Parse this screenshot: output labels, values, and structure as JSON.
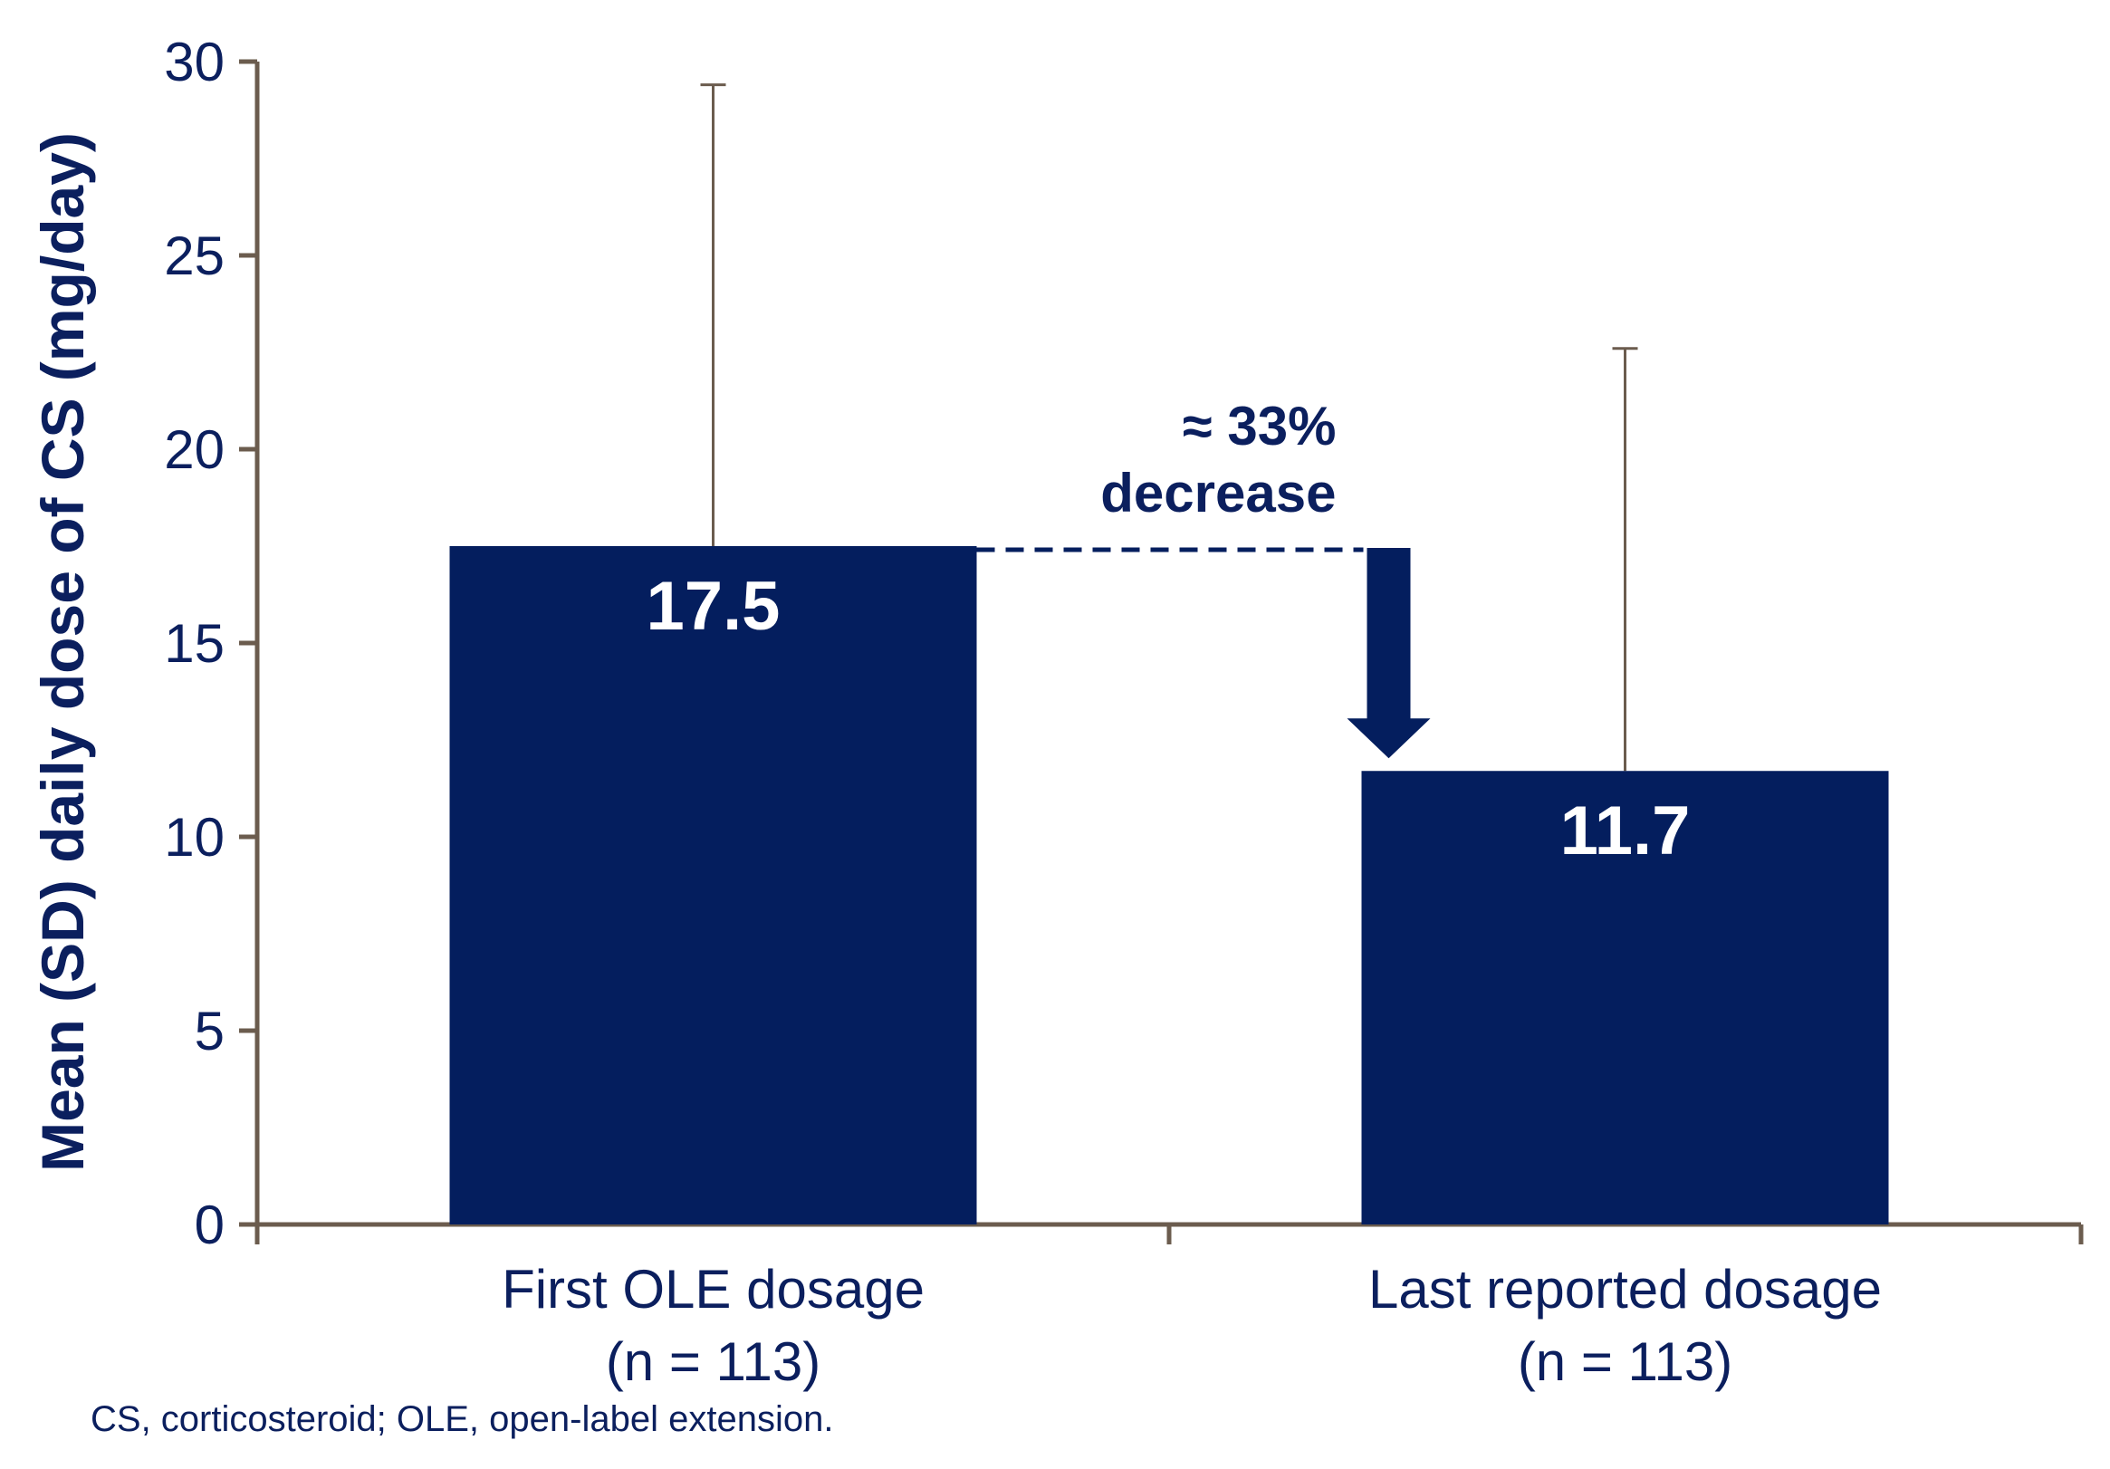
{
  "colors": {
    "bar": "#041e5e",
    "axis": "#6b5c4e",
    "text": "#0b1f5e"
  },
  "chart_data": {
    "type": "bar",
    "categories": [
      [
        "First OLE dosage",
        "(n = 113)"
      ],
      [
        "Last reported dosage",
        "(n = 113)"
      ]
    ],
    "values": [
      17.5,
      11.7
    ],
    "sd": [
      11.9,
      10.9
    ],
    "data_labels": [
      "17.5",
      "11.7"
    ],
    "ylabel": "Mean (SD) daily dose of CS (mg/day)",
    "xlabel": "",
    "ylim": [
      0,
      30
    ],
    "yticks": [
      0,
      5,
      10,
      15,
      20,
      25,
      30
    ],
    "grid": false,
    "annotation": [
      "≈ 33%",
      "decrease"
    ]
  },
  "footnote": "CS, corticosteroid; OLE, open-label extension."
}
